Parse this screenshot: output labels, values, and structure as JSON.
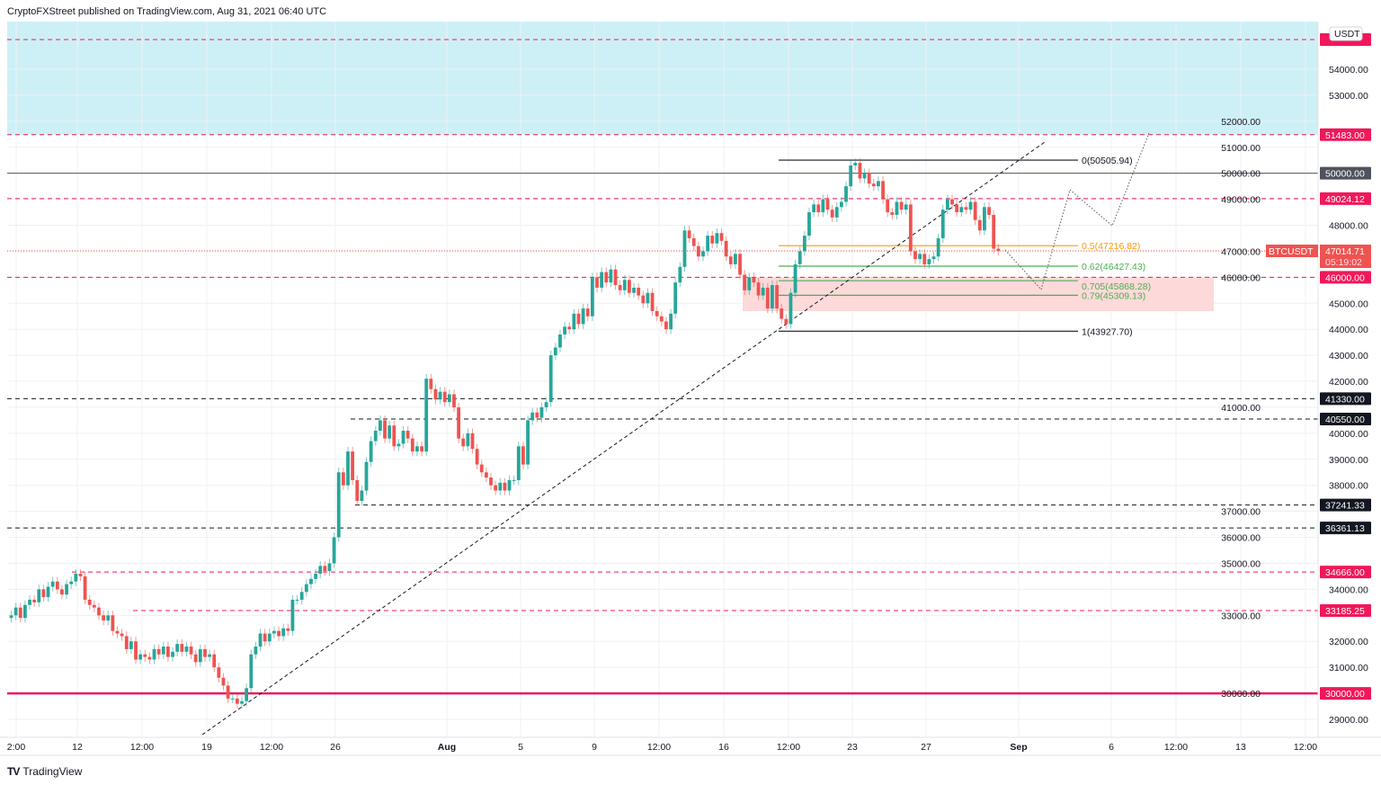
{
  "header": {
    "text": "CryptoFXStreet published on TradingView.com, Aug 31, 2021 06:40 UTC"
  },
  "footer": {
    "logo_text": "TradingView"
  },
  "colors": {
    "up": "#26a69a",
    "down": "#ef5350",
    "key_level": "#f0185a",
    "resistance_zone": "#cdf0f6",
    "support_zone": "#fdd9d9",
    "fib_half": "#ff9800",
    "fib_green": "#4caf50"
  },
  "chart_data": {
    "type": "candlestick",
    "symbol": "BTCUSDT",
    "currency": "USDT",
    "interval_note": "",
    "price_axis": {
      "min": 28500,
      "max": 55500,
      "ticks": [
        29000,
        30000,
        31000,
        32000,
        33000,
        34000,
        35000,
        36000,
        37000,
        38000,
        39000,
        40000,
        41000,
        42000,
        43000,
        44000,
        45000,
        46000,
        47000,
        48000,
        49000,
        50000,
        51000,
        52000,
        53000,
        54000
      ]
    },
    "time_axis": {
      "labels": [
        "2:00",
        "12",
        "12:00",
        "19",
        "12:00",
        "26",
        "Aug",
        "5",
        "9",
        "12:00",
        "16",
        "12:00",
        "23",
        "27",
        "Sep",
        "6",
        "12:00",
        "13",
        "12:00"
      ]
    },
    "close": [
      33000,
      33300,
      32900,
      33400,
      33600,
      33500,
      34000,
      33700,
      34100,
      34300,
      34000,
      33800,
      34200,
      34300,
      34600,
      34500,
      33600,
      33400,
      33300,
      33000,
      32800,
      33000,
      32400,
      32300,
      32200,
      31700,
      32000,
      31300,
      31500,
      31400,
      31300,
      31700,
      31500,
      31800,
      31400,
      31600,
      31900,
      31600,
      31800,
      31500,
      31200,
      31700,
      31400,
      31500,
      31000,
      30600,
      30300,
      29800,
      29800,
      29600,
      29700,
      30200,
      31500,
      31800,
      32300,
      32000,
      32300,
      32400,
      32200,
      32500,
      32400,
      33600,
      33600,
      33900,
      34200,
      34400,
      34600,
      34900,
      34700,
      35000,
      36000,
      38500,
      38000,
      39300,
      38200,
      37400,
      37800,
      38900,
      39700,
      40100,
      40500,
      39800,
      40300,
      39500,
      39600,
      40100,
      39800,
      39300,
      39500,
      39300,
      42100,
      41700,
      41300,
      41600,
      41200,
      41500,
      41000,
      39800,
      39500,
      40000,
      39400,
      38800,
      38500,
      38300,
      38000,
      37800,
      38100,
      37800,
      38200,
      38200,
      39500,
      38800,
      40500,
      40800,
      40600,
      41000,
      41200,
      43000,
      43300,
      43800,
      44100,
      44000,
      44600,
      44200,
      44800,
      44500,
      46000,
      45600,
      46200,
      45800,
      46300,
      45700,
      45500,
      45900,
      45400,
      45600,
      45300,
      45000,
      45400,
      44700,
      44500,
      44300,
      44000,
      44600,
      45800,
      46400,
      47800,
      47500,
      47200,
      46800,
      47000,
      47600,
      47300,
      47700,
      47400,
      46800,
      46500,
      46900,
      46100,
      45500,
      46000,
      45800,
      45300,
      45600,
      44800,
      45700,
      44800,
      44400,
      44200,
      45400,
      46500,
      47000,
      47600,
      48500,
      48800,
      48500,
      49000,
      48600,
      48300,
      48700,
      48900,
      49500,
      50300,
      50400,
      49800,
      50000,
      49600,
      49500,
      49700,
      49000,
      48500,
      48400,
      48900,
      48600,
      48800,
      47000,
      46700,
      46900,
      46500,
      46700,
      46800,
      47500,
      48600,
      49000,
      48800,
      48500,
      48700,
      48600,
      48900,
      48200,
      47800,
      48700,
      48400,
      47100,
      47014.71
    ],
    "horizontal_levels": [
      {
        "price": 51483.0,
        "label": "51483.00",
        "style": "pink-dashed"
      },
      {
        "price": 50000.0,
        "label": "50000.00",
        "style": "gray-solid"
      },
      {
        "price": 49024.12,
        "label": "49024.12",
        "style": "pink-dashed"
      },
      {
        "price": 46000.0,
        "label": "46000.00",
        "style": "pink-dashed"
      },
      {
        "price": 41330.0,
        "label": "41330.00",
        "style": "black-dashed"
      },
      {
        "price": 40550.0,
        "label": "40550.00",
        "style": "black-dashed"
      },
      {
        "price": 37241.33,
        "label": "37241.33",
        "style": "black-dashed"
      },
      {
        "price": 36361.13,
        "label": "36361.13",
        "style": "black-dashed"
      },
      {
        "price": 34666.0,
        "label": "34666.00",
        "style": "pink-dashed"
      },
      {
        "price": 33185.25,
        "label": "33185.25",
        "style": "pink-dashed"
      },
      {
        "price": 30000.0,
        "label": "30000.00",
        "style": "pink-solid"
      }
    ],
    "top_level": {
      "price": 55140,
      "style": "pink-dashed"
    },
    "fibonacci": [
      {
        "ratio": "0",
        "price": 50505.94,
        "label": "0(50505.94)",
        "color": "#131722"
      },
      {
        "ratio": "0.5",
        "price": 47216.82,
        "label": "0.5(47216.82)",
        "color": "#ff9800"
      },
      {
        "ratio": "0.62",
        "price": 46427.43,
        "label": "0.62(46427.43)",
        "color": "#4caf50"
      },
      {
        "ratio": "0.705",
        "price": 45868.28,
        "label": "0.705(45868.28)",
        "color": "#4caf50"
      },
      {
        "ratio": "0.79",
        "price": 45309.13,
        "label": "0.79(45309.13)",
        "color": "#4caf50"
      },
      {
        "ratio": "1",
        "price": 43927.7,
        "label": "1(43927.70)",
        "color": "#131722"
      }
    ],
    "current_price": {
      "symbol": "BTCUSDT",
      "price": "47014.71",
      "countdown": "05:19:02"
    },
    "grid": true
  }
}
